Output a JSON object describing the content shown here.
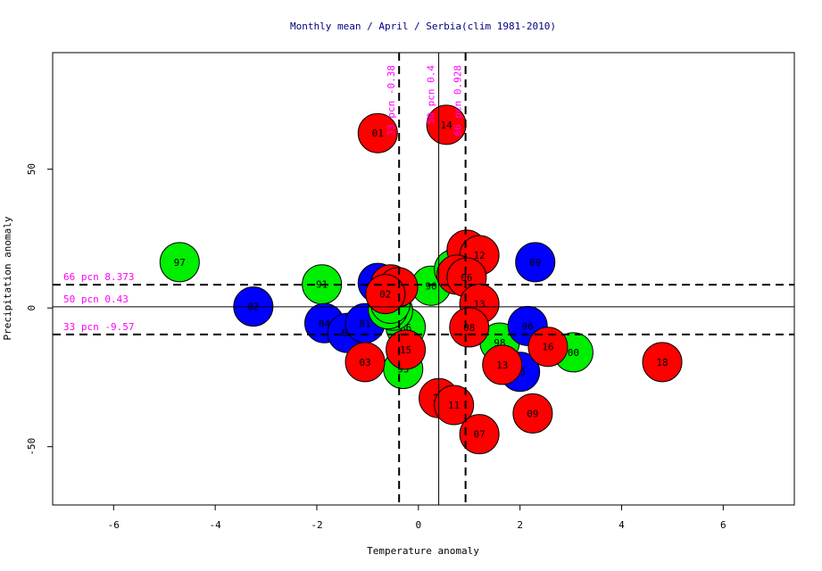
{
  "chart_data": {
    "type": "scatter",
    "title": "Monthly mean / April / Serbia(clim 1981-2010)",
    "xlabel": "Temperature anomaly",
    "ylabel": "Precipitation anomaly",
    "xlim": [
      -7.2,
      7.4
    ],
    "ylim": [
      -71,
      92
    ],
    "xticks": [
      -6,
      -4,
      -2,
      0,
      2,
      4,
      6
    ],
    "yticks": [
      -50,
      0,
      50
    ],
    "grid": false,
    "legend": "none",
    "colors": {
      "cold": "#0000ff",
      "normal": "#00ee00",
      "warm": "#ff0000",
      "guide": "#ff00ff"
    },
    "vlines": [
      {
        "x": -0.38,
        "label": "33 pcn -0.38",
        "dashed": true
      },
      {
        "x": 0.4,
        "label": "50 pcn 0.4",
        "dashed": false
      },
      {
        "x": 0.928,
        "label": "66 pcn 0.928",
        "dashed": true
      }
    ],
    "hlines": [
      {
        "y": 8.373,
        "label": "66 pcn 8.373",
        "dashed": true
      },
      {
        "y": 0.43,
        "label": "50 pcn 0.43",
        "dashed": false
      },
      {
        "y": -9.57,
        "label": "33 pcn -9.57",
        "dashed": true
      }
    ],
    "points": [
      {
        "label": "97",
        "x": -4.7,
        "y": 16.5,
        "color": "green"
      },
      {
        "label": "82",
        "x": -3.25,
        "y": 0.5,
        "color": "blue"
      },
      {
        "label": "91",
        "x": -1.9,
        "y": 8.5,
        "color": "green"
      },
      {
        "label": "84",
        "x": -1.85,
        "y": -5.5,
        "color": "blue"
      },
      {
        "label": "83",
        "x": -1.4,
        "y": -9.0,
        "color": "blue"
      },
      {
        "label": "81",
        "x": -1.05,
        "y": -5.5,
        "color": "blue"
      },
      {
        "label": "87",
        "x": -0.8,
        "y": 9.0,
        "color": "blue"
      },
      {
        "label": "86",
        "x": -0.25,
        "y": -7.0,
        "color": "green"
      },
      {
        "label": "93",
        "x": -0.3,
        "y": -22.0,
        "color": "green"
      },
      {
        "label": "90",
        "x": 0.25,
        "y": 8.0,
        "color": "green"
      },
      {
        "label": "89",
        "x": -0.5,
        "y": -1.0,
        "color": "green"
      },
      {
        "label": "92",
        "x": -0.6,
        "y": -0.5,
        "color": "green"
      },
      {
        "label": "95",
        "x": -0.55,
        "y": 1.5,
        "color": "green"
      },
      {
        "label": "99",
        "x": 0.9,
        "y": 17.5,
        "color": "green"
      },
      {
        "label": "94",
        "x": 0.7,
        "y": 14.0,
        "color": "green"
      },
      {
        "label": "98",
        "x": 1.6,
        "y": -12.5,
        "color": "green"
      },
      {
        "label": "00",
        "x": 3.05,
        "y": -16.0,
        "color": "green"
      },
      {
        "label": "69",
        "x": 2.3,
        "y": 16.5,
        "color": "blue"
      },
      {
        "label": "96",
        "x": 2.15,
        "y": -6.5,
        "color": "blue"
      },
      {
        "label": "85",
        "x": 2.0,
        "y": -23.0,
        "color": "blue"
      },
      {
        "label": "01",
        "x": -0.8,
        "y": 63.0,
        "color": "red"
      },
      {
        "label": "14",
        "x": 0.55,
        "y": 66.0,
        "color": "red"
      },
      {
        "label": "17",
        "x": -0.55,
        "y": 8.5,
        "color": "red"
      },
      {
        "label": "04",
        "x": -0.4,
        "y": 7.5,
        "color": "red"
      },
      {
        "label": "02",
        "x": -0.65,
        "y": 5.0,
        "color": "red"
      },
      {
        "label": "05",
        "x": 0.95,
        "y": 21.0,
        "color": "red"
      },
      {
        "label": "12",
        "x": 1.2,
        "y": 19.0,
        "color": "red"
      },
      {
        "label": "10",
        "x": 0.75,
        "y": 12.0,
        "color": "red"
      },
      {
        "label": "06",
        "x": 0.95,
        "y": 11.0,
        "color": "red"
      },
      {
        "label": "13",
        "x": 1.2,
        "y": 1.5,
        "color": "red"
      },
      {
        "label": "08",
        "x": 1.0,
        "y": -7.0,
        "color": "red"
      },
      {
        "label": "15",
        "x": -0.25,
        "y": -15.0,
        "color": "red"
      },
      {
        "label": "03",
        "x": -1.05,
        "y": -19.5,
        "color": "red"
      },
      {
        "label": "20",
        "x": 0.4,
        "y": -32.5,
        "color": "red"
      },
      {
        "label": "11",
        "x": 0.7,
        "y": -35.0,
        "color": "red"
      },
      {
        "label": "07",
        "x": 1.2,
        "y": -45.5,
        "color": "red"
      },
      {
        "label": "13",
        "x": 1.65,
        "y": -20.5,
        "color": "red"
      },
      {
        "label": "16",
        "x": 2.55,
        "y": -14.0,
        "color": "red"
      },
      {
        "label": "09",
        "x": 2.25,
        "y": -38.0,
        "color": "red"
      },
      {
        "label": "18",
        "x": 4.8,
        "y": -19.5,
        "color": "red"
      }
    ]
  }
}
